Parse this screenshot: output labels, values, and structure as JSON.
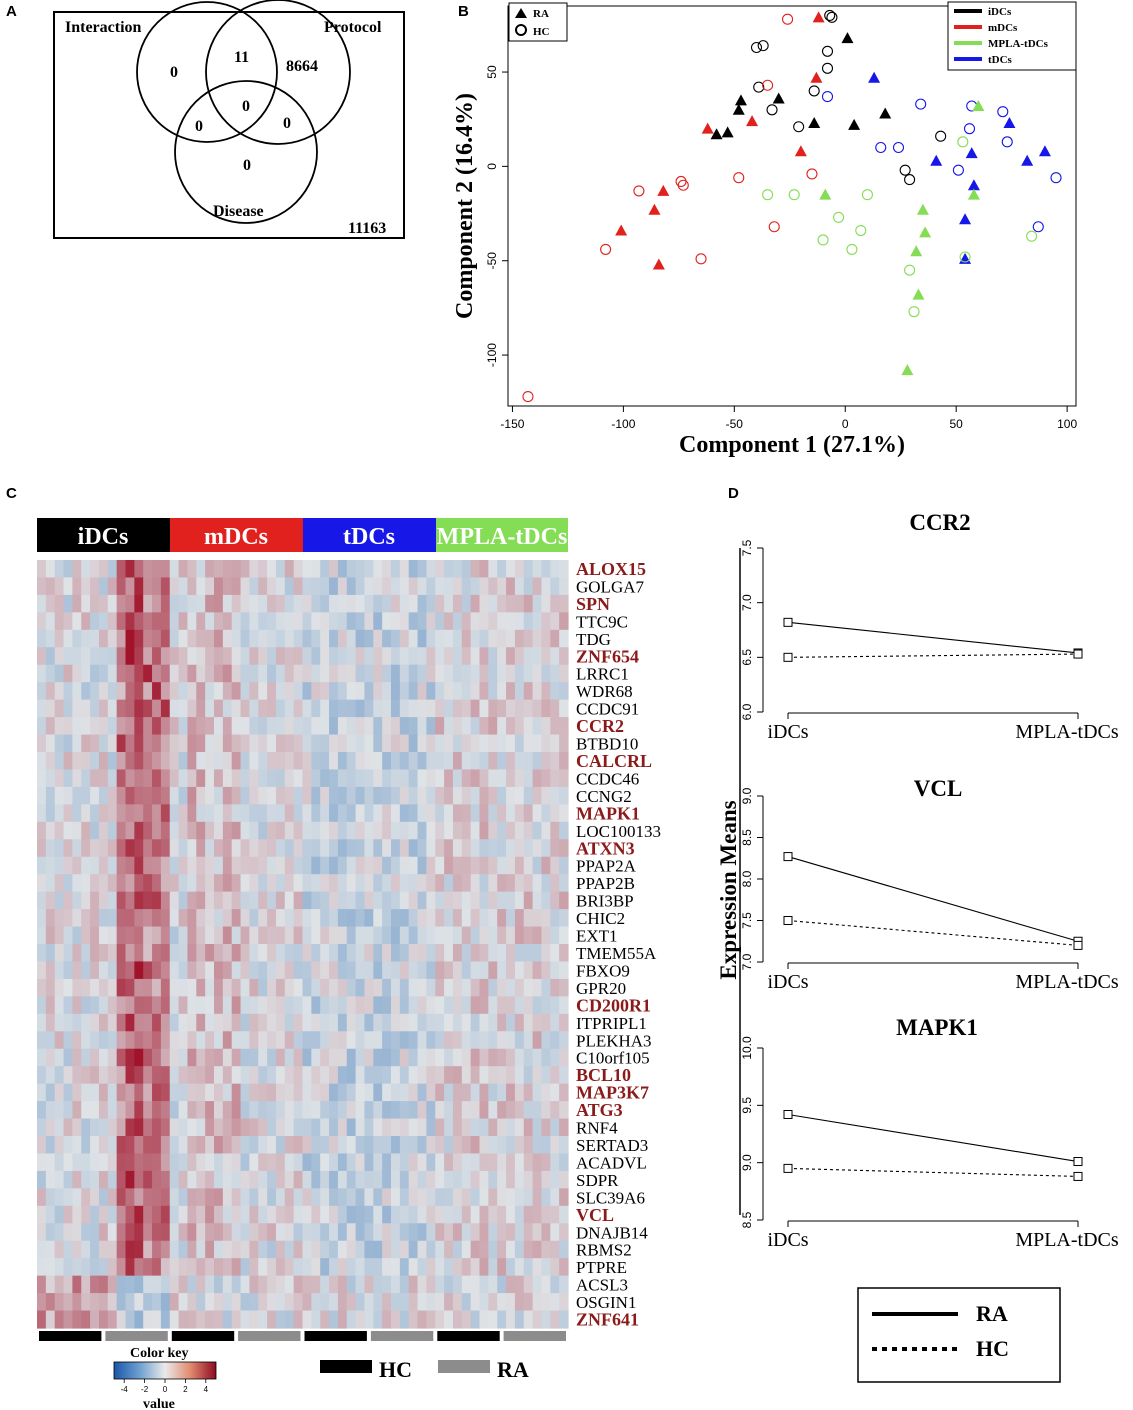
{
  "panel_labels": {
    "a": "A",
    "b": "B",
    "c": "C",
    "d": "D"
  },
  "colors": {
    "iDCs": "#000000",
    "mDCs": "#e0211d",
    "tDCs": "#1717e8",
    "MPLA-tDCs": "#84dd55",
    "gene_highlight": "#8b1a1a",
    "heat_low": "#2a6db5",
    "heat_mid": "#dfe3e6",
    "heat_high": "#a1132a",
    "HC_bar": "#000000",
    "RA_bar": "#8c8c8c"
  },
  "chart_data": [
    {
      "type": "venn",
      "sets": [
        "Interaction",
        "Protocol",
        "Disease"
      ],
      "regions": [
        {
          "sets": [
            "Interaction"
          ],
          "value": "0"
        },
        {
          "sets": [
            "Interaction",
            "Protocol"
          ],
          "value": "11"
        },
        {
          "sets": [
            "Protocol"
          ],
          "value": "8664"
        },
        {
          "sets": [
            "Interaction",
            "Protocol",
            "Disease"
          ],
          "value": "0"
        },
        {
          "sets": [
            "Interaction",
            "Disease"
          ],
          "value": "0"
        },
        {
          "sets": [
            "Protocol",
            "Disease"
          ],
          "value": "0"
        },
        {
          "sets": [
            "Disease"
          ],
          "value": "0"
        }
      ],
      "outside": "11163"
    },
    {
      "type": "scatter",
      "xlabel": "Component 1 (27.1%)",
      "ylabel": "Component 2 (16.4%)",
      "xlim": [
        -152,
        104
      ],
      "ylim": [
        -127,
        85
      ],
      "xticks": [
        -150,
        -100,
        -50,
        0,
        50,
        100
      ],
      "yticks": [
        -100,
        -50,
        0,
        50
      ],
      "shape_legend": [
        {
          "label": "RA",
          "marker": "triangle"
        },
        {
          "label": "HC",
          "marker": "circle"
        }
      ],
      "color_legend": [
        {
          "label": "iDCs",
          "group": "iDCs"
        },
        {
          "label": "mDCs",
          "group": "mDCs"
        },
        {
          "label": "MPLA-tDCs",
          "group": "MPLA-tDCs"
        },
        {
          "label": "tDCs",
          "group": "tDCs"
        }
      ],
      "series": [
        {
          "name": "iDCs",
          "RA": [
            [
              -47,
              35
            ],
            [
              -48,
              30
            ],
            [
              -30,
              36
            ],
            [
              -58,
              17
            ],
            [
              -53,
              18
            ],
            [
              -14,
              23
            ],
            [
              1,
              68
            ],
            [
              4,
              22
            ],
            [
              18,
              28
            ]
          ],
          "HC": [
            [
              -40,
              63
            ],
            [
              -37,
              64
            ],
            [
              -39,
              42
            ],
            [
              -33,
              30
            ],
            [
              -21,
              21
            ],
            [
              -8,
              61
            ],
            [
              -7,
              80
            ],
            [
              -6,
              79
            ],
            [
              -8,
              52
            ],
            [
              -14,
              40
            ],
            [
              27,
              -2
            ],
            [
              29,
              -7
            ],
            [
              43,
              16
            ]
          ]
        },
        {
          "name": "mDCs",
          "RA": [
            [
              -62,
              20
            ],
            [
              -42,
              24
            ],
            [
              -13,
              47
            ],
            [
              -12,
              79
            ],
            [
              -20,
              8
            ],
            [
              -101,
              -34
            ],
            [
              -82,
              -13
            ],
            [
              -86,
              -23
            ],
            [
              -84,
              -52
            ]
          ],
          "HC": [
            [
              -26,
              78
            ],
            [
              -35,
              43
            ],
            [
              -74,
              -8
            ],
            [
              -73,
              -10
            ],
            [
              -93,
              -13
            ],
            [
              -48,
              -6
            ],
            [
              -32,
              -32
            ],
            [
              -65,
              -49
            ],
            [
              -108,
              -44
            ],
            [
              -143,
              -122
            ],
            [
              -15,
              -4
            ]
          ]
        },
        {
          "name": "tDCs",
          "RA": [
            [
              13,
              47
            ],
            [
              41,
              3
            ],
            [
              57,
              7
            ],
            [
              58,
              -10
            ],
            [
              54,
              -28
            ],
            [
              54,
              -49
            ],
            [
              74,
              23
            ],
            [
              82,
              3
            ],
            [
              90,
              8
            ]
          ],
          "HC": [
            [
              -8,
              37
            ],
            [
              34,
              33
            ],
            [
              16,
              10
            ],
            [
              24,
              10
            ],
            [
              51,
              -2
            ],
            [
              56,
              20
            ],
            [
              57,
              32
            ],
            [
              71,
              29
            ],
            [
              73,
              13
            ],
            [
              87,
              -32
            ],
            [
              95,
              -6
            ]
          ]
        },
        {
          "name": "MPLA-tDCs",
          "RA": [
            [
              -9,
              -15
            ],
            [
              35,
              -23
            ],
            [
              36,
              -35
            ],
            [
              32,
              -45
            ],
            [
              33,
              -68
            ],
            [
              58,
              -15
            ],
            [
              60,
              32
            ],
            [
              28,
              -108
            ]
          ],
          "HC": [
            [
              -35,
              -15
            ],
            [
              -23,
              -15
            ],
            [
              -10,
              -39
            ],
            [
              -3,
              -27
            ],
            [
              3,
              -44
            ],
            [
              7,
              -34
            ],
            [
              10,
              -15
            ],
            [
              29,
              -55
            ],
            [
              31,
              -77
            ],
            [
              53,
              13
            ],
            [
              54,
              -48
            ],
            [
              84,
              -37
            ]
          ]
        }
      ]
    },
    {
      "type": "heatmap",
      "groups": [
        "iDCs",
        "mDCs",
        "tDCs",
        "MPLA-tDCs"
      ],
      "genes": [
        {
          "name": "ALOX15",
          "highlight": true
        },
        {
          "name": "GOLGA7",
          "highlight": false
        },
        {
          "name": "SPN",
          "highlight": true
        },
        {
          "name": "TTC9C",
          "highlight": false
        },
        {
          "name": "TDG",
          "highlight": false
        },
        {
          "name": "ZNF654",
          "highlight": true
        },
        {
          "name": "LRRC1",
          "highlight": false
        },
        {
          "name": "WDR68",
          "highlight": false
        },
        {
          "name": "CCDC91",
          "highlight": false
        },
        {
          "name": "CCR2",
          "highlight": true
        },
        {
          "name": "BTBD10",
          "highlight": false
        },
        {
          "name": "CALCRL",
          "highlight": true
        },
        {
          "name": "CCDC46",
          "highlight": false
        },
        {
          "name": "CCNG2",
          "highlight": false
        },
        {
          "name": "MAPK1",
          "highlight": true
        },
        {
          "name": "LOC100133",
          "highlight": false
        },
        {
          "name": "ATXN3",
          "highlight": true
        },
        {
          "name": "PPAP2A",
          "highlight": false
        },
        {
          "name": "PPAP2B",
          "highlight": false
        },
        {
          "name": "BRI3BP",
          "highlight": false
        },
        {
          "name": "CHIC2",
          "highlight": false
        },
        {
          "name": "EXT1",
          "highlight": false
        },
        {
          "name": "TMEM55A",
          "highlight": false
        },
        {
          "name": "FBXO9",
          "highlight": false
        },
        {
          "name": "GPR20",
          "highlight": false
        },
        {
          "name": "CD200R1",
          "highlight": true
        },
        {
          "name": "ITPRIPL1",
          "highlight": false
        },
        {
          "name": "PLEKHA3",
          "highlight": false
        },
        {
          "name": "C10orf105",
          "highlight": false
        },
        {
          "name": "BCL10",
          "highlight": true
        },
        {
          "name": "MAP3K7",
          "highlight": true
        },
        {
          "name": "ATG3",
          "highlight": true
        },
        {
          "name": "RNF4",
          "highlight": false
        },
        {
          "name": "SERTAD3",
          "highlight": false
        },
        {
          "name": "ACADVL",
          "highlight": false
        },
        {
          "name": "SDPR",
          "highlight": false
        },
        {
          "name": "SLC39A6",
          "highlight": false
        },
        {
          "name": "VCL",
          "highlight": true
        },
        {
          "name": "DNAJB14",
          "highlight": false
        },
        {
          "name": "RBMS2",
          "highlight": false
        },
        {
          "name": "PTPRE",
          "highlight": false
        },
        {
          "name": "ACSL3",
          "highlight": false
        },
        {
          "name": "OSGIN1",
          "highlight": false
        },
        {
          "name": "ZNF641",
          "highlight": true
        }
      ],
      "color_key": {
        "title": "Color key",
        "xlabel": "value",
        "ticks": [
          -4,
          -2,
          0,
          2,
          4
        ],
        "range": [
          -5,
          5
        ]
      },
      "bottom_legend": [
        {
          "label": "HC",
          "group": "HC_bar"
        },
        {
          "label": "RA",
          "group": "RA_bar"
        }
      ]
    },
    {
      "type": "line",
      "ylabel": "Expression Means",
      "categories": [
        "iDCs",
        "MPLA-tDCs"
      ],
      "legend": [
        {
          "label": "RA",
          "style": "solid"
        },
        {
          "label": "HC",
          "style": "dotted"
        }
      ],
      "panels": [
        {
          "title": "CCR2",
          "ylim": [
            6.0,
            7.5
          ],
          "yticks": [
            "6.0",
            "6.5",
            "7.0",
            "7.5"
          ],
          "series": [
            {
              "name": "RA",
              "values": [
                6.82,
                6.54
              ]
            },
            {
              "name": "HC",
              "values": [
                6.5,
                6.53
              ]
            }
          ]
        },
        {
          "title": "VCL",
          "ylim": [
            7.0,
            9.0
          ],
          "yticks": [
            "7.0",
            "7.5",
            "8.0",
            "8.5",
            "9.0"
          ],
          "series": [
            {
              "name": "RA",
              "values": [
                8.27,
                7.25
              ]
            },
            {
              "name": "HC",
              "values": [
                7.5,
                7.2
              ]
            }
          ]
        },
        {
          "title": "MAPK1",
          "ylim": [
            8.5,
            10.0
          ],
          "yticks": [
            "8.5",
            "9.0",
            "9.5",
            "10.0"
          ],
          "series": [
            {
              "name": "RA",
              "values": [
                9.42,
                9.01
              ]
            },
            {
              "name": "HC",
              "values": [
                8.95,
                8.88
              ]
            }
          ]
        }
      ]
    }
  ]
}
